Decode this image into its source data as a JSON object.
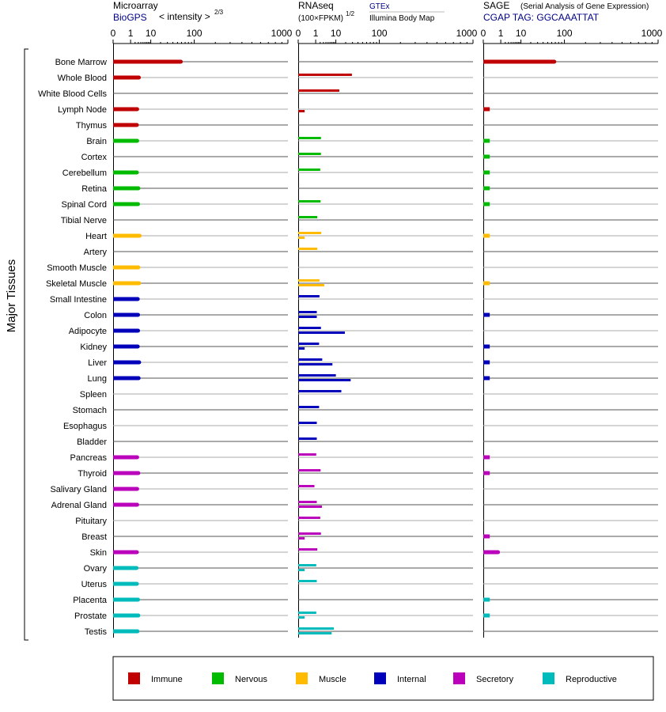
{
  "chart_data": {
    "type": "bar",
    "y_axis_label": "Major Tissues",
    "panels": [
      {
        "key": "microarray",
        "title": "Microarray",
        "subtitle": "BioGPS",
        "subtitle2": "< intensity >",
        "exponent": "2/3",
        "xticks": [
          "0",
          "1",
          "10",
          "100",
          "1000"
        ],
        "xlim": [
          0,
          1000
        ]
      },
      {
        "key": "rnaseq",
        "title": "RNAseq",
        "subtitle": "(100×FPKM)",
        "exponent": "1/2",
        "sources": [
          "GTEx",
          "Illumina Body Map"
        ],
        "xticks": [
          "0",
          "1",
          "10",
          "100",
          "1000"
        ],
        "xlim": [
          0,
          1000
        ]
      },
      {
        "key": "sage",
        "title": "SAGE",
        "subtitle": "(Serial Analysis of Gene Expression)",
        "subtitle2": "CGAP TAG: GGCAAATTAT",
        "xticks": [
          "0",
          "1",
          "10",
          "100",
          "1000"
        ],
        "xlim": [
          0,
          1000
        ]
      }
    ],
    "categories": [
      "Bone Marrow",
      "Whole Blood",
      "White Blood Cells",
      "Lymph Node",
      "Thymus",
      "Brain",
      "Cortex",
      "Cerebellum",
      "Retina",
      "Spinal Cord",
      "Tibial Nerve",
      "Heart",
      "Artery",
      "Smooth Muscle",
      "Skeletal Muscle",
      "Small Intestine",
      "Colon",
      "Adipocyte",
      "Kidney",
      "Liver",
      "Lung",
      "Spleen",
      "Stomach",
      "Esophagus",
      "Bladder",
      "Pancreas",
      "Thyroid",
      "Salivary Gland",
      "Adrenal Gland",
      "Pituitary",
      "Breast",
      "Skin",
      "Ovary",
      "Uterus",
      "Placenta",
      "Prostate",
      "Testis"
    ],
    "groups": [
      "immune",
      "immune",
      "immune",
      "immune",
      "immune",
      "nervous",
      "nervous",
      "nervous",
      "nervous",
      "nervous",
      "nervous",
      "muscle",
      "muscle",
      "muscle",
      "muscle",
      "internal",
      "internal",
      "internal",
      "internal",
      "internal",
      "internal",
      "internal",
      "internal",
      "internal",
      "internal",
      "secretory",
      "secretory",
      "secretory",
      "secretory",
      "secretory",
      "secretory",
      "secretory",
      "reproductive",
      "reproductive",
      "reproductive",
      "reproductive",
      "reproductive"
    ],
    "series": {
      "microarray": [
        58,
        3.2,
        null,
        2.6,
        2.5,
        2.6,
        null,
        2.5,
        3.0,
        2.9,
        null,
        3.5,
        null,
        3.0,
        3.3,
        2.8,
        2.9,
        2.9,
        2.8,
        3.3,
        3.1,
        null,
        null,
        null,
        null,
        2.6,
        3.0,
        2.6,
        2.6,
        null,
        null,
        2.5,
        2.4,
        2.5,
        2.9,
        3.0,
        2.7
      ],
      "rnaseq_gtex": [
        null,
        29,
        13,
        null,
        null,
        2.2,
        2.2,
        2.0,
        null,
        2.1,
        1.3,
        2.3,
        1.3,
        null,
        1.8,
        1.8,
        1.2,
        2.2,
        1.7,
        2.6,
        10,
        15,
        1.7,
        1.2,
        1.2,
        1.1,
        2.1,
        0.8,
        1.2,
        2.0,
        2.2,
        1.3,
        1.1,
        1.2,
        null,
        1.1,
        8.5
      ],
      "rnaseq_ibm": [
        null,
        null,
        null,
        0.05,
        null,
        null,
        null,
        null,
        null,
        null,
        null,
        0.05,
        null,
        null,
        3.3,
        null,
        1.2,
        19,
        0.05,
        7.5,
        27,
        null,
        null,
        null,
        null,
        null,
        null,
        null,
        2.5,
        null,
        0.05,
        null,
        0.05,
        null,
        null,
        0.05,
        7
      ],
      "sage": [
        67,
        null,
        null,
        0.05,
        null,
        0.05,
        0.05,
        0.05,
        0.05,
        0.05,
        null,
        0.05,
        null,
        null,
        0.05,
        null,
        0.05,
        null,
        0.05,
        0.05,
        0.05,
        null,
        null,
        null,
        null,
        0.05,
        0.05,
        null,
        null,
        null,
        0.05,
        0.6,
        null,
        null,
        0.05,
        0.05,
        null
      ]
    },
    "legend_position": "bottom",
    "legend": [
      {
        "key": "immune",
        "label": "Immune",
        "color": "#c00000"
      },
      {
        "key": "nervous",
        "label": "Nervous",
        "color": "#00bb00"
      },
      {
        "key": "muscle",
        "label": "Muscle",
        "color": "#ffbb00"
      },
      {
        "key": "internal",
        "label": "Internal",
        "color": "#0000bb"
      },
      {
        "key": "secretory",
        "label": "Secretory",
        "color": "#bb00bb"
      },
      {
        "key": "reproductive",
        "label": "Reproductive",
        "color": "#00bbbb"
      }
    ]
  }
}
